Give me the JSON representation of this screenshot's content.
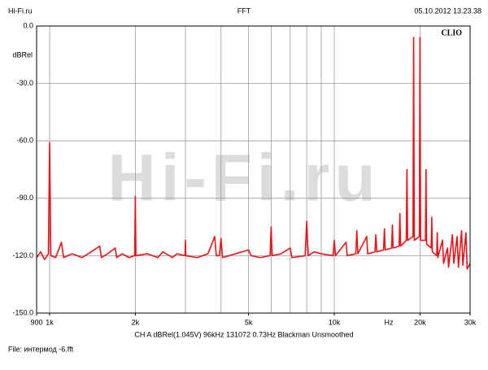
{
  "chart_data": {
    "type": "line",
    "title": "FFT",
    "header_left": "Hi-Fi.ru",
    "header_right": "05.10.2012 13.23.38",
    "brand": "CLIO",
    "watermark": "Hi-Fi.ru",
    "ylabel": "dBRel",
    "xlabel": "Hz",
    "settings_line": "CH A   dBRel(1.045V)   96kHz   131072   0.73Hz   Blackman   Unsmoothed",
    "file_line": "File: интермод -6.fft",
    "xscale": "log",
    "xlim": [
      900,
      30000
    ],
    "ylim": [
      -150,
      0
    ],
    "xticks": [
      900,
      {
        "value": 1000,
        "label": "1k"
      },
      {
        "value": 2000,
        "label": "2k"
      },
      {
        "value": 5000,
        "label": "5k"
      },
      {
        "value": 10000,
        "label": "10k"
      },
      {
        "value": 20000,
        "label": "20k"
      },
      {
        "value": 30000,
        "label": "30k"
      }
    ],
    "xgrid": [
      1000,
      2000,
      3000,
      4000,
      5000,
      6000,
      7000,
      8000,
      9000,
      10000,
      20000
    ],
    "yticks": [
      {
        "value": 0,
        "label": "0.0"
      },
      {
        "value": -30,
        "label": "-30.0"
      },
      {
        "value": -60,
        "label": "-60.0"
      },
      {
        "value": -90,
        "label": "-90.0"
      },
      {
        "value": -120,
        "label": "-120.0"
      },
      {
        "value": -150,
        "label": "-150.0"
      }
    ],
    "grid": true,
    "x": [
      900,
      930,
      960,
      990,
      1000,
      1010,
      1050,
      1100,
      1120,
      1200,
      1300,
      1400,
      1500,
      1520,
      1600,
      1700,
      1720,
      1800,
      1900,
      1990,
      2000,
      2010,
      2200,
      2400,
      2500,
      2700,
      2800,
      2990,
      3000,
      3010,
      3300,
      3600,
      3800,
      3850,
      3950,
      4000,
      4050,
      4500,
      5000,
      5100,
      5500,
      5950,
      6000,
      6050,
      6500,
      7000,
      7100,
      7900,
      8000,
      8100,
      8500,
      9000,
      9900,
      10000,
      10100,
      11000,
      11100,
      11900,
      12000,
      12100,
      13000,
      13100,
      13900,
      14000,
      14100,
      14900,
      15000,
      15100,
      15900,
      16000,
      16100,
      16900,
      17000,
      17100,
      17900,
      18000,
      18100,
      18900,
      19000,
      19100,
      19900,
      20000,
      20100,
      20900,
      21000,
      21100,
      21900,
      22000,
      22100,
      22900,
      23000,
      23100,
      24000,
      24200,
      25000,
      25200,
      26000,
      26300,
      27000,
      27300,
      28000,
      28300,
      29000,
      29300,
      30000
    ],
    "series": [
      {
        "name": "CH A",
        "color": "#e8141b",
        "values": [
          -121,
          -118,
          -122,
          -119,
          -61,
          -120,
          -121,
          -113,
          -121,
          -119,
          -121,
          -118,
          -115,
          -121,
          -119,
          -116,
          -121,
          -119,
          -121,
          -120,
          -89,
          -120,
          -119,
          -121,
          -118,
          -121,
          -119,
          -120,
          -112,
          -120,
          -121,
          -119,
          -110,
          -120,
          -120,
          -111,
          -121,
          -119,
          -117,
          -120,
          -121,
          -120,
          -105,
          -120,
          -119,
          -116,
          -121,
          -120,
          -102,
          -120,
          -118,
          -119,
          -120,
          -112,
          -120,
          -113,
          -120,
          -119,
          -107,
          -119,
          -110,
          -119,
          -118,
          -109,
          -118,
          -117,
          -106,
          -117,
          -116,
          -104,
          -116,
          -115,
          -98,
          -115,
          -112,
          -75,
          -112,
          -110,
          -6,
          -112,
          -110,
          -6,
          -112,
          -112,
          -75,
          -114,
          -116,
          -100,
          -118,
          -120,
          -108,
          -121,
          -112,
          -124,
          -116,
          -126,
          -109,
          -124,
          -110,
          -126,
          -107,
          -125,
          -108,
          -127,
          -124
        ]
      }
    ]
  }
}
